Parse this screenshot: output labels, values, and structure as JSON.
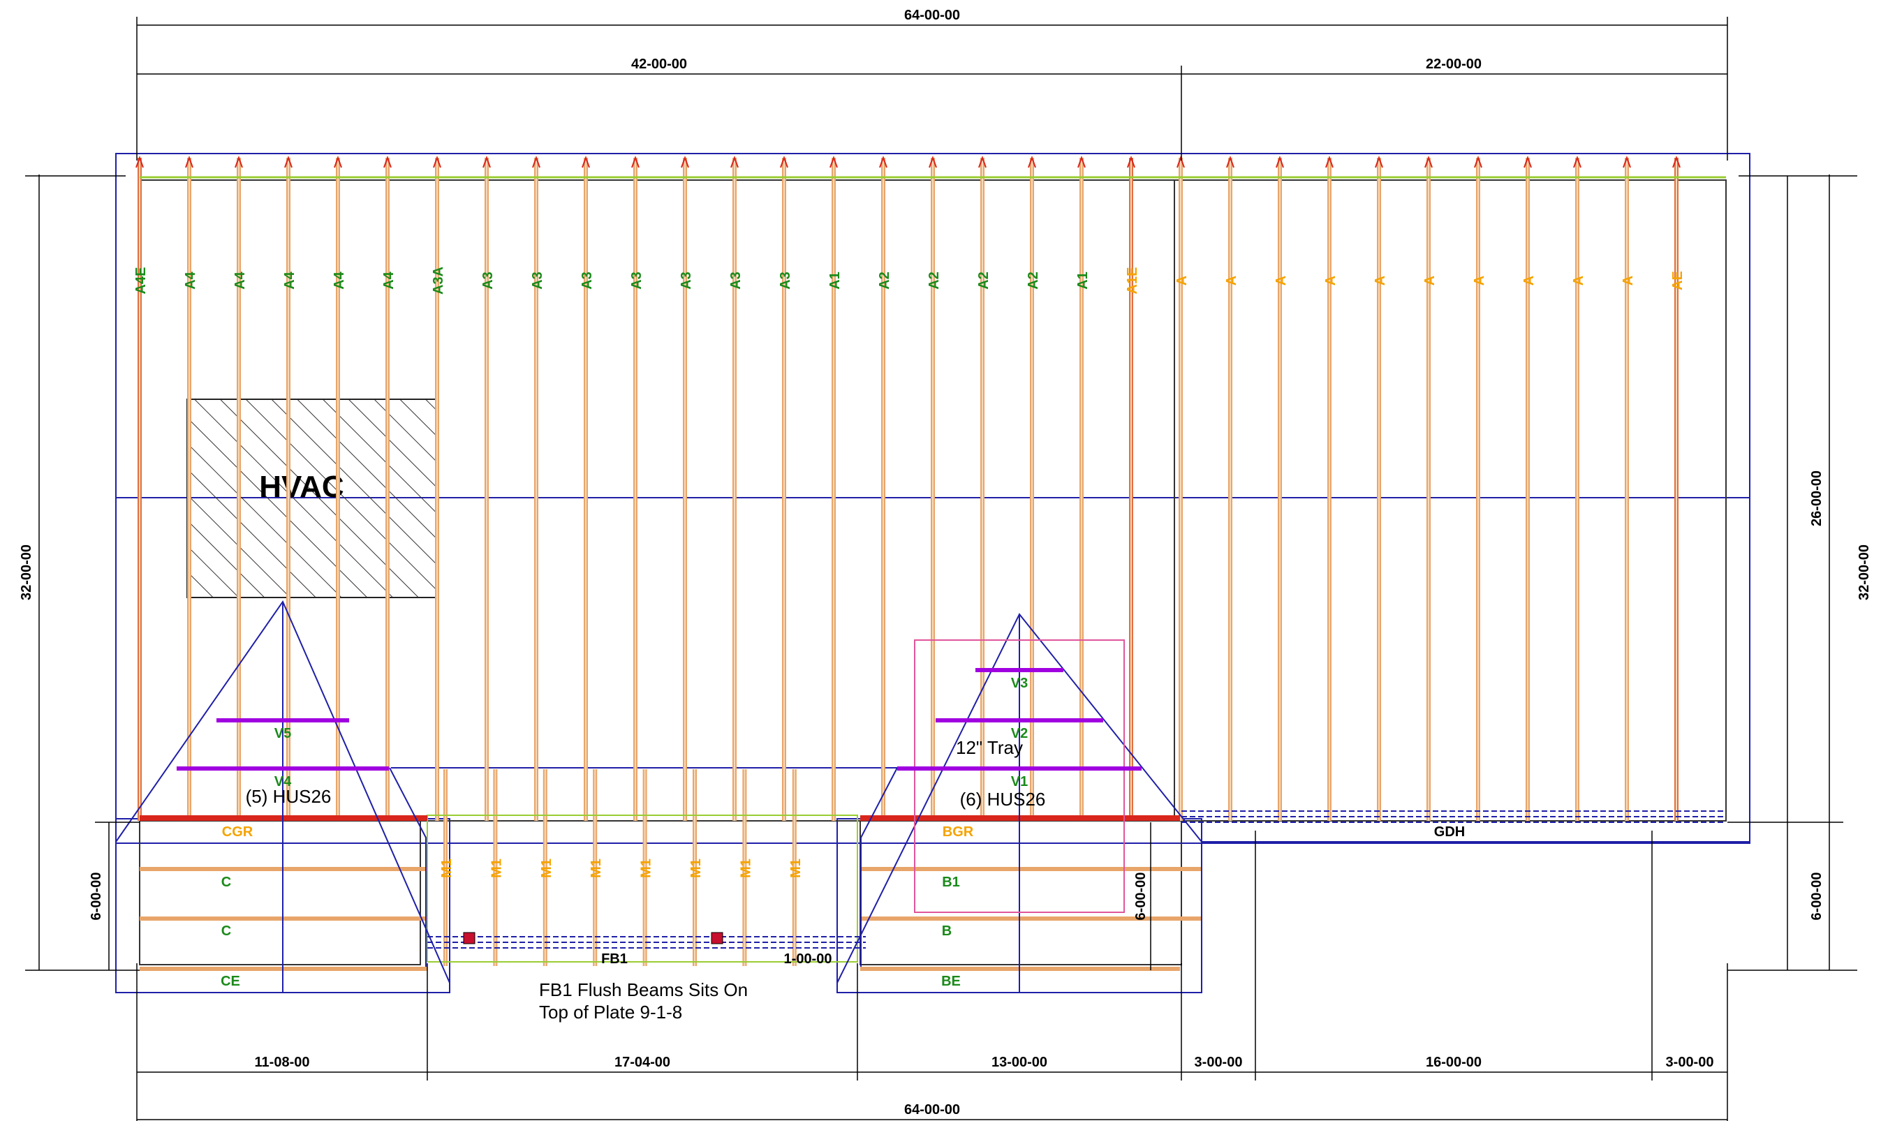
{
  "dimensions": {
    "top_total": "64-00-00",
    "top_left": "42-00-00",
    "top_right": "22-00-00",
    "bottom_total": "64-00-00",
    "bottom_segments": [
      "11-08-00",
      "17-04-00",
      "13-00-00",
      "3-00-00",
      "16-00-00",
      "3-00-00"
    ],
    "left_total": "32-00-00",
    "left_bump": "6-00-00",
    "right_total": "32-00-00",
    "right_upper": "26-00-00",
    "right_lower": "6-00-00",
    "inner_bump": "6-00-00",
    "beam_offset": "1-00-00"
  },
  "truss_labels_main": [
    {
      "label": "A4E",
      "color": "green"
    },
    {
      "label": "A4",
      "color": "green"
    },
    {
      "label": "A4",
      "color": "green"
    },
    {
      "label": "A4",
      "color": "green"
    },
    {
      "label": "A4",
      "color": "green"
    },
    {
      "label": "A4",
      "color": "green"
    },
    {
      "label": "A3A",
      "color": "green"
    },
    {
      "label": "A3",
      "color": "green"
    },
    {
      "label": "A3",
      "color": "green"
    },
    {
      "label": "A3",
      "color": "green"
    },
    {
      "label": "A3",
      "color": "green"
    },
    {
      "label": "A3",
      "color": "green"
    },
    {
      "label": "A3",
      "color": "green"
    },
    {
      "label": "A3",
      "color": "green"
    },
    {
      "label": "A1",
      "color": "green"
    },
    {
      "label": "A2",
      "color": "green"
    },
    {
      "label": "A2",
      "color": "green"
    },
    {
      "label": "A2",
      "color": "green"
    },
    {
      "label": "A2",
      "color": "green"
    },
    {
      "label": "A1",
      "color": "green"
    },
    {
      "label": "A1E",
      "color": "orange"
    },
    {
      "label": "A",
      "color": "orange"
    },
    {
      "label": "A",
      "color": "orange"
    },
    {
      "label": "A",
      "color": "orange"
    },
    {
      "label": "A",
      "color": "orange"
    },
    {
      "label": "A",
      "color": "orange"
    },
    {
      "label": "A",
      "color": "orange"
    },
    {
      "label": "A",
      "color": "orange"
    },
    {
      "label": "A",
      "color": "orange"
    },
    {
      "label": "A",
      "color": "orange"
    },
    {
      "label": "A",
      "color": "orange"
    },
    {
      "label": "AE",
      "color": "orange"
    }
  ],
  "truss_labels_middle": [
    "M1",
    "M1",
    "M1",
    "M1",
    "M1",
    "M1",
    "M1",
    "M1"
  ],
  "left_bump_labels": {
    "girder": "CGR",
    "c1": "C",
    "c2": "C",
    "end": "CE"
  },
  "right_bump_labels": {
    "girder": "BGR",
    "b1": "B1",
    "b2": "B",
    "end": "BE"
  },
  "valley_labels": {
    "v5": "V5",
    "v4": "V4",
    "v3": "V3",
    "v2": "V2",
    "v1": "V1"
  },
  "hvac_label": "HVAC",
  "hangers_left": "(5) HUS26",
  "hangers_right": "(6) HUS26",
  "tray_label": "12\" Tray",
  "beam_fb1": "FB1",
  "beam_gdh": "GDH",
  "note_line1": "FB1 Flush Beams Sits On",
  "note_line2": "Top of Plate 9-1-8",
  "colors": {
    "truss": "#e8a56a",
    "truss_core": "#f6d9b8",
    "girder": "#d9261c",
    "outline": "#1f1fa8",
    "valley": "#a000e0",
    "label_green": "#1a8a1a",
    "label_orange": "#f5a300",
    "tray": "#e0559b"
  }
}
